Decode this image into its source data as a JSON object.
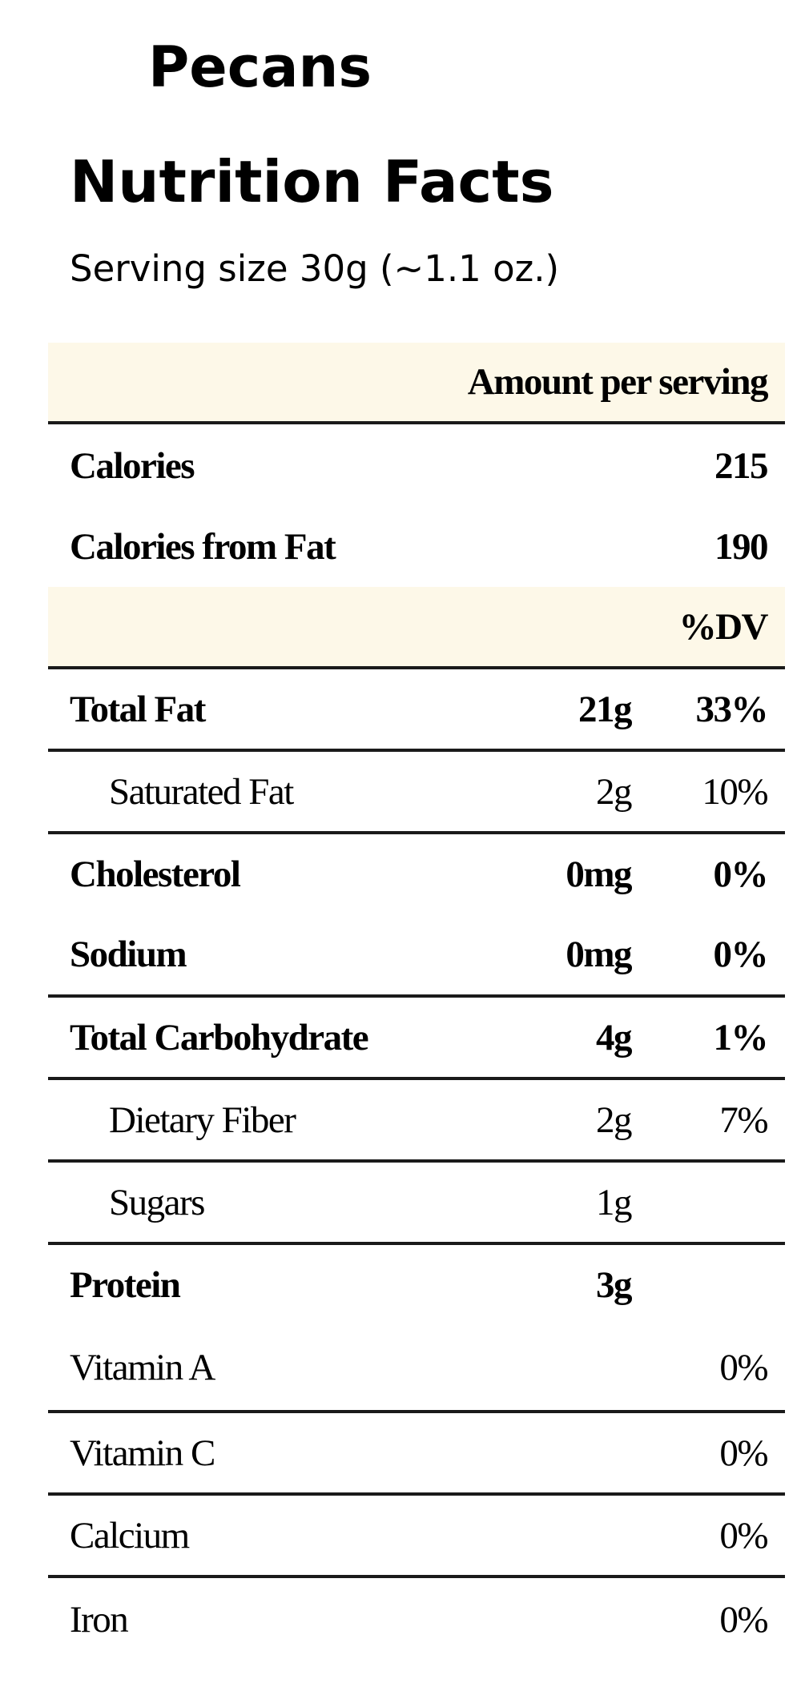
{
  "product": {
    "name": "Pecans"
  },
  "label": {
    "heading": "Nutrition Facts",
    "serving_size": "Serving size 30g (~1.1 oz.)"
  },
  "table": {
    "amount_header": "Amount per serving",
    "calories": {
      "label": "Calories",
      "value": "215"
    },
    "calories_from_fat": {
      "label": "Calories from Fat",
      "value": "190"
    },
    "dv_header": "%DV",
    "nutrients": [
      {
        "label": "Total Fat",
        "amount": "21g",
        "dv": "33%"
      },
      {
        "label": "Saturated Fat",
        "amount": "2g",
        "dv": "10%"
      },
      {
        "label": "Cholesterol",
        "amount": "0mg",
        "dv": "0%"
      },
      {
        "label": "Sodium",
        "amount": "0mg",
        "dv": "0%"
      },
      {
        "label": "Total Carbohydrate",
        "amount": "4g",
        "dv": "1%"
      },
      {
        "label": "Dietary Fiber",
        "amount": "2g",
        "dv": "7%"
      },
      {
        "label": "Sugars",
        "amount": "1g",
        "dv": ""
      },
      {
        "label": "Protein",
        "amount": "3g",
        "dv": ""
      }
    ],
    "vitamins": [
      {
        "label": "Vitamin A",
        "dv": "0%"
      },
      {
        "label": "Vitamin C",
        "dv": "0%"
      },
      {
        "label": "Calcium",
        "dv": "0%"
      },
      {
        "label": "Iron",
        "dv": "0%"
      }
    ]
  },
  "colors": {
    "header_background": "#fdf8e8",
    "rule": "#1a1a1a",
    "text": "#000000"
  }
}
